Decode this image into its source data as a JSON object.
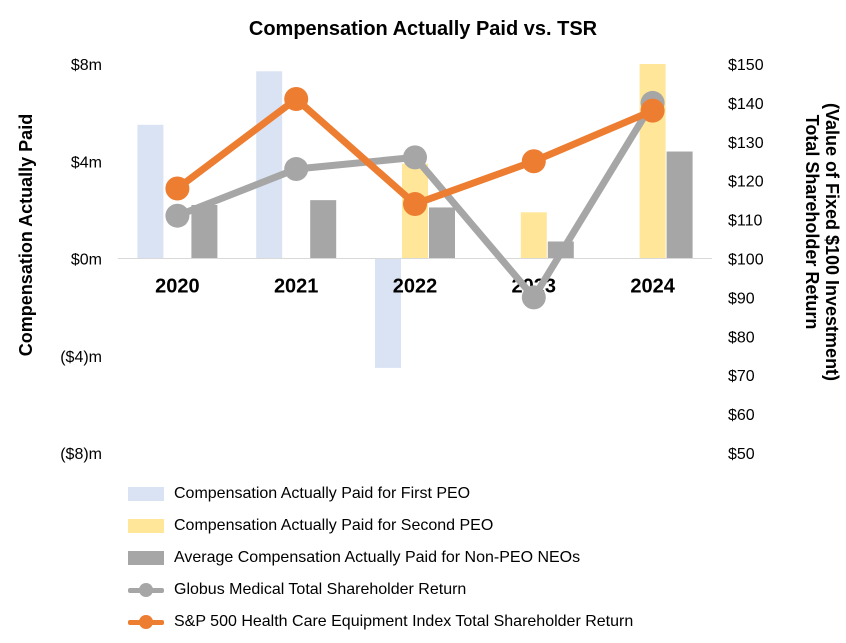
{
  "chart_data": {
    "type": "bar+line",
    "title": "Compensation Actually Paid vs. TSR",
    "ylabel_left": "Compensation Actually Paid",
    "ylabel_right_line1": "Total Shareholder Return",
    "ylabel_right_line2": "(Value of Fixed $100 Investment)",
    "categories": [
      "2020",
      "2021",
      "2022",
      "2023",
      "2024"
    ],
    "y_left": {
      "min": -8,
      "max": 8,
      "ticks": [
        8,
        4,
        0,
        -4,
        -8
      ],
      "tick_labels": [
        "$8m",
        "$4m",
        "$0m",
        "($4)m",
        "($8)m"
      ]
    },
    "y_right": {
      "min": 50,
      "max": 150,
      "ticks": [
        150,
        140,
        130,
        120,
        110,
        100,
        90,
        80,
        70,
        60,
        50
      ],
      "tick_labels": [
        "$150",
        "$140",
        "$130",
        "$120",
        "$110",
        "$100",
        "$90",
        "$80",
        "$70",
        "$60",
        "$50"
      ]
    },
    "bar_series": [
      {
        "name": "Compensation Actually Paid for First PEO",
        "color": "#dae3f3",
        "values": [
          5.5,
          7.7,
          -4.5,
          null,
          null
        ]
      },
      {
        "name": "Compensation Actually Paid for Second PEO",
        "color": "#ffe699",
        "values": [
          null,
          null,
          3.9,
          1.9,
          8.0
        ]
      },
      {
        "name": "Average Compensation Actually Paid for Non-PEO NEOs",
        "color": "#a6a6a6",
        "values": [
          2.2,
          2.4,
          2.1,
          0.7,
          4.4
        ]
      }
    ],
    "line_series": [
      {
        "name": "Globus Medical  Total Shareholder Return",
        "color": "#a6a6a6",
        "values": [
          111,
          123,
          126,
          90,
          140
        ]
      },
      {
        "name": "S&P 500 Health Care  Equipment Index Total Shareholder Return",
        "color": "#ed7d31",
        "values": [
          118,
          141,
          114,
          125,
          138
        ]
      }
    ]
  }
}
